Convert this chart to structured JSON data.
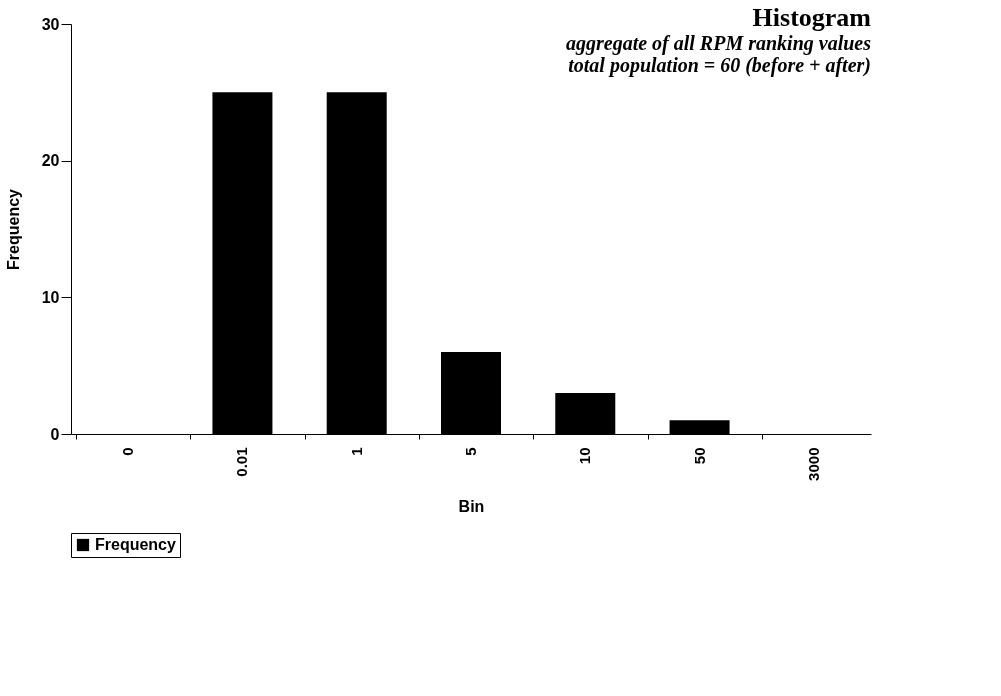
{
  "chart_data": {
    "type": "bar",
    "title": "Histogram",
    "subtitle": "aggregate of all RPM ranking values",
    "annotations": [
      "total population = 60 (before + after)"
    ],
    "xlabel": "Bin",
    "ylabel": "Frequency",
    "categories": [
      "0",
      "0.01",
      "1",
      "5",
      "10",
      "50",
      "3000"
    ],
    "series": [
      {
        "name": "Frequency",
        "color": "#000000",
        "values": [
          0,
          25,
          25,
          6,
          3,
          1,
          0
        ]
      }
    ],
    "ylim": [
      0,
      30
    ],
    "yticks": [
      0,
      10,
      20,
      30
    ],
    "grid": false,
    "legend": "bottom"
  }
}
